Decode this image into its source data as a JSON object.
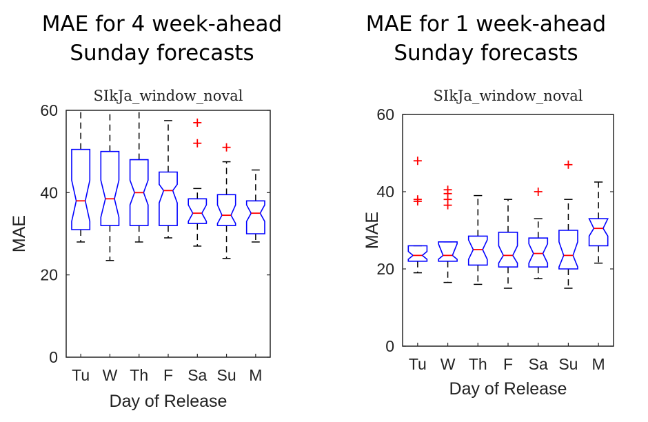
{
  "panels": [
    {
      "heading_line1": "MAE for 4 week-ahead",
      "heading_line2": "Sunday forecasts",
      "chart_data": {
        "type": "box",
        "title": "SIkJa_window_noval",
        "xlabel": "Day of Release",
        "ylabel": "MAE",
        "ylim": [
          0,
          60
        ],
        "yticks": [
          0,
          20,
          40,
          60
        ],
        "categories": [
          "Tu",
          "W",
          "Th",
          "F",
          "Sa",
          "Su",
          "M"
        ],
        "boxes": [
          {
            "whisker_low": 28,
            "q1": 31,
            "median": 38,
            "q3": 50.5,
            "whisker_high": 60,
            "notch_low": 33,
            "notch_high": 43,
            "outliers": []
          },
          {
            "whisker_low": 23.5,
            "q1": 32,
            "median": 38.5,
            "q3": 50,
            "whisker_high": 60,
            "notch_low": 34,
            "notch_high": 43,
            "outliers": []
          },
          {
            "whisker_low": 28,
            "q1": 32,
            "median": 40,
            "q3": 48,
            "whisker_high": 60,
            "notch_low": 37,
            "notch_high": 43,
            "outliers": []
          },
          {
            "whisker_low": 29,
            "q1": 32,
            "median": 40.5,
            "q3": 45,
            "whisker_high": 57.5,
            "notch_low": 37.5,
            "notch_high": 42,
            "outliers": []
          },
          {
            "whisker_low": 27,
            "q1": 32.5,
            "median": 35,
            "q3": 38.5,
            "whisker_high": 41,
            "notch_low": 33,
            "notch_high": 37,
            "outliers": [
              52,
              57
            ]
          },
          {
            "whisker_low": 24,
            "q1": 32,
            "median": 34.5,
            "q3": 39.5,
            "whisker_high": 47.5,
            "notch_low": 32.5,
            "notch_high": 37,
            "outliers": [
              51
            ]
          },
          {
            "whisker_low": 28,
            "q1": 30,
            "median": 35,
            "q3": 38,
            "whisker_high": 45.5,
            "notch_low": 33,
            "notch_high": 37,
            "outliers": []
          }
        ]
      }
    },
    {
      "heading_line1": "MAE for 1 week-ahead",
      "heading_line2": "Sunday forecasts",
      "chart_data": {
        "type": "box",
        "title": "SIkJa_window_noval",
        "xlabel": "Day of Release",
        "ylabel": "MAE",
        "ylim": [
          0,
          60
        ],
        "yticks": [
          0,
          20,
          40,
          60
        ],
        "categories": [
          "Tu",
          "W",
          "Th",
          "F",
          "Sa",
          "Su",
          "M"
        ],
        "boxes": [
          {
            "whisker_low": 19,
            "q1": 22,
            "median": 23.5,
            "q3": 26,
            "whisker_high": 26,
            "notch_low": 22.5,
            "notch_high": 24.5,
            "outliers": [
              37.5,
              38,
              48
            ]
          },
          {
            "whisker_low": 16.5,
            "q1": 22,
            "median": 23.5,
            "q3": 27,
            "whisker_high": 27,
            "notch_low": 22.5,
            "notch_high": 26.5,
            "outliers": [
              36.5,
              38,
              39.5,
              40.5
            ]
          },
          {
            "whisker_low": 16,
            "q1": 21,
            "median": 25,
            "q3": 28.5,
            "whisker_high": 39,
            "notch_low": 22.5,
            "notch_high": 27.5,
            "outliers": []
          },
          {
            "whisker_low": 15,
            "q1": 20.5,
            "median": 23.5,
            "q3": 29.5,
            "whisker_high": 38,
            "notch_low": 21.5,
            "notch_high": 26,
            "outliers": []
          },
          {
            "whisker_low": 17.5,
            "q1": 20.5,
            "median": 24,
            "q3": 28,
            "whisker_high": 33,
            "notch_low": 21.5,
            "notch_high": 26.5,
            "outliers": [
              40
            ]
          },
          {
            "whisker_low": 15,
            "q1": 20,
            "median": 23.5,
            "q3": 30,
            "whisker_high": 38,
            "notch_low": 20.5,
            "notch_high": 27,
            "outliers": [
              47
            ]
          },
          {
            "whisker_low": 21.5,
            "q1": 26,
            "median": 30.5,
            "q3": 33,
            "whisker_high": 42.5,
            "notch_low": 28.5,
            "notch_high": 33,
            "outliers": []
          }
        ]
      }
    }
  ],
  "colors": {
    "box": "#0000ff",
    "median": "#ff0000",
    "outlier": "#ff0000",
    "whisker": "#000000",
    "axis": "#262626"
  }
}
